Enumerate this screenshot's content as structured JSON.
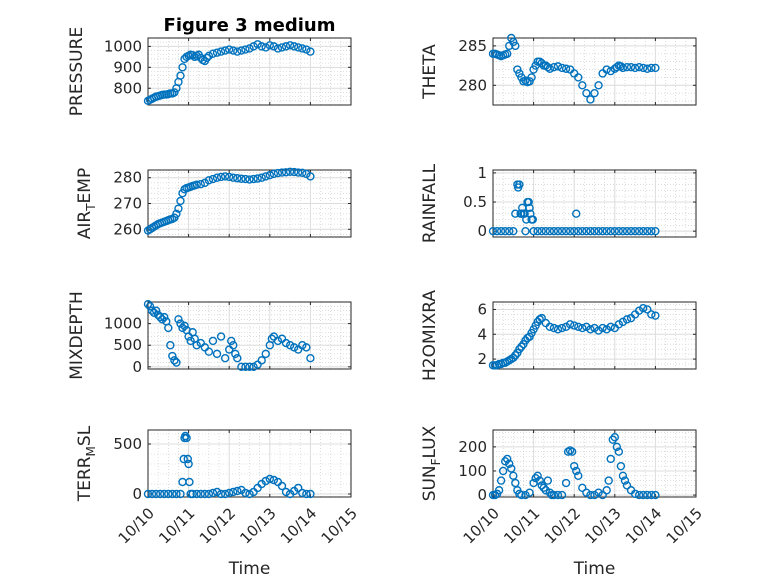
{
  "colors": {
    "marker": "#0072BD",
    "axis": "#262626",
    "grid": "#dcdcdc"
  },
  "chart_data": [
    {
      "type": "scatter",
      "id": "pressure",
      "title": "Figure 3 medium",
      "ylabel": "PRESSURE",
      "ylabel_sub": "",
      "ylabel_after": "",
      "xlabel": "",
      "ylim": [
        720,
        1040
      ],
      "yticks": [
        800,
        900,
        1000
      ],
      "ytick_labels": [
        "800",
        "900",
        "1000"
      ],
      "xlim": [
        0,
        5
      ],
      "xticks": [
        0,
        1,
        2,
        3,
        4,
        5
      ],
      "x": [
        0.0,
        0.05,
        0.1,
        0.15,
        0.2,
        0.25,
        0.3,
        0.35,
        0.4,
        0.45,
        0.5,
        0.55,
        0.6,
        0.65,
        0.7,
        0.75,
        0.8,
        0.85,
        0.9,
        0.95,
        1.0,
        1.05,
        1.1,
        1.15,
        1.2,
        1.25,
        1.3,
        1.35,
        1.4,
        1.45,
        1.5,
        1.6,
        1.7,
        1.8,
        1.9,
        2.0,
        2.1,
        2.2,
        2.3,
        2.4,
        2.5,
        2.6,
        2.7,
        2.8,
        2.9,
        3.0,
        3.1,
        3.2,
        3.3,
        3.4,
        3.5,
        3.6,
        3.7,
        3.8,
        3.9,
        4.0
      ],
      "y": [
        740,
        745,
        750,
        755,
        760,
        762,
        765,
        768,
        770,
        770,
        772,
        775,
        775,
        780,
        800,
        830,
        860,
        900,
        940,
        950,
        955,
        960,
        958,
        950,
        955,
        960,
        945,
        935,
        930,
        945,
        955,
        965,
        970,
        975,
        980,
        985,
        980,
        975,
        980,
        985,
        990,
        1000,
        1010,
        1000,
        995,
        1005,
        1000,
        990,
        995,
        1000,
        1005,
        1000,
        995,
        990,
        985,
        975
      ]
    },
    {
      "type": "scatter",
      "id": "theta",
      "title": "",
      "ylabel": "THETA",
      "ylabel_sub": "",
      "ylabel_after": "",
      "xlabel": "",
      "ylim": [
        277.5,
        286
      ],
      "yticks": [
        280,
        285
      ],
      "ytick_labels": [
        "280",
        "285"
      ],
      "xlim": [
        0,
        5
      ],
      "xticks": [
        0,
        1,
        2,
        3,
        4,
        5
      ],
      "x": [
        0.0,
        0.05,
        0.1,
        0.15,
        0.2,
        0.25,
        0.3,
        0.35,
        0.4,
        0.45,
        0.5,
        0.55,
        0.6,
        0.65,
        0.7,
        0.75,
        0.8,
        0.85,
        0.9,
        0.95,
        1.0,
        1.05,
        1.1,
        1.15,
        1.2,
        1.25,
        1.3,
        1.35,
        1.4,
        1.5,
        1.6,
        1.7,
        1.8,
        1.9,
        2.0,
        2.1,
        2.2,
        2.3,
        2.4,
        2.5,
        2.6,
        2.7,
        2.8,
        2.9,
        3.0,
        3.05,
        3.1,
        3.15,
        3.2,
        3.3,
        3.4,
        3.5,
        3.6,
        3.7,
        3.8,
        3.9,
        4.0
      ],
      "y": [
        284,
        284,
        283.9,
        283.8,
        283.7,
        283.8,
        283.9,
        284,
        285,
        286,
        285.5,
        285,
        282,
        281.5,
        281,
        280.5,
        280.6,
        280.4,
        280.5,
        281,
        282,
        282.5,
        283,
        283,
        282.8,
        282.5,
        282.5,
        282.3,
        282.1,
        282.3,
        282.4,
        282.2,
        282.1,
        282,
        281.5,
        281,
        280,
        279,
        278.2,
        279,
        280,
        281.5,
        282,
        281.8,
        282.1,
        282.3,
        282.5,
        282.4,
        282.2,
        282.3,
        282.3,
        282.2,
        282.3,
        282.2,
        282.1,
        282.2,
        282.2
      ]
    },
    {
      "type": "scatter",
      "id": "air_temp",
      "title": "",
      "ylabel": "AIR",
      "ylabel_sub": "T",
      "ylabel_after": "EMP",
      "xlabel": "",
      "ylim": [
        257,
        283
      ],
      "yticks": [
        260,
        270,
        280
      ],
      "ytick_labels": [
        "260",
        "270",
        "280"
      ],
      "xlim": [
        0,
        5
      ],
      "xticks": [
        0,
        1,
        2,
        3,
        4,
        5
      ],
      "x": [
        0.0,
        0.05,
        0.1,
        0.15,
        0.2,
        0.25,
        0.3,
        0.35,
        0.4,
        0.45,
        0.5,
        0.55,
        0.6,
        0.65,
        0.7,
        0.75,
        0.8,
        0.85,
        0.9,
        0.95,
        1.0,
        1.05,
        1.1,
        1.15,
        1.2,
        1.3,
        1.4,
        1.5,
        1.6,
        1.7,
        1.8,
        1.9,
        2.0,
        2.1,
        2.2,
        2.3,
        2.4,
        2.5,
        2.6,
        2.7,
        2.8,
        2.9,
        3.0,
        3.1,
        3.2,
        3.3,
        3.4,
        3.5,
        3.6,
        3.7,
        3.8,
        3.9,
        4.0
      ],
      "y": [
        259.5,
        260,
        260.5,
        261,
        261.5,
        262,
        262.3,
        262.6,
        262.9,
        263.2,
        263.5,
        263.8,
        264,
        264.5,
        266,
        268,
        271,
        274,
        275.5,
        276,
        276.2,
        276.5,
        276.8,
        277,
        277.3,
        277.5,
        278,
        279,
        279.5,
        280,
        280.3,
        280.5,
        280.3,
        280,
        279.8,
        279.6,
        279.5,
        279.3,
        279.5,
        279.7,
        280,
        280.5,
        281,
        281.5,
        281.8,
        282,
        282.1,
        282.3,
        282.2,
        282,
        281.9,
        281.5,
        280.5
      ]
    },
    {
      "type": "scatter",
      "id": "rainfall",
      "title": "",
      "ylabel": "RAINFALL",
      "ylabel_sub": "",
      "ylabel_after": "",
      "xlabel": "",
      "ylim": [
        -0.1,
        1.05
      ],
      "yticks": [
        0,
        0.5,
        1
      ],
      "ytick_labels": [
        "0",
        "0.5",
        "1"
      ],
      "xlim": [
        0,
        5
      ],
      "xticks": [
        0,
        1,
        2,
        3,
        4,
        5
      ],
      "x": [
        0.0,
        0.1,
        0.2,
        0.3,
        0.4,
        0.5,
        0.55,
        0.6,
        0.62,
        0.65,
        0.68,
        0.7,
        0.72,
        0.75,
        0.78,
        0.8,
        0.82,
        0.85,
        0.88,
        0.9,
        0.92,
        0.95,
        0.98,
        1.0,
        1.1,
        1.2,
        1.3,
        1.4,
        1.5,
        1.6,
        1.7,
        1.8,
        1.9,
        2.0,
        2.05,
        2.1,
        2.2,
        2.3,
        2.4,
        2.5,
        2.6,
        2.7,
        2.8,
        2.9,
        3.0,
        3.1,
        3.2,
        3.3,
        3.4,
        3.5,
        3.6,
        3.7,
        3.8,
        3.9,
        4.0
      ],
      "y": [
        0,
        0,
        0,
        0,
        0,
        0,
        0.3,
        0.8,
        0.75,
        0.8,
        0.3,
        0.3,
        0.4,
        0.3,
        0.3,
        0,
        0.2,
        0.5,
        0.5,
        0.4,
        0.3,
        0.2,
        0.2,
        0,
        0,
        0,
        0,
        0,
        0,
        0,
        0,
        0,
        0,
        0,
        0.3,
        0,
        0,
        0,
        0,
        0,
        0,
        0,
        0,
        0,
        0,
        0,
        0,
        0,
        0,
        0,
        0,
        0,
        0,
        0,
        0
      ]
    },
    {
      "type": "scatter",
      "id": "mixdepth",
      "title": "",
      "ylabel": "MIXDEPTH",
      "ylabel_sub": "",
      "ylabel_after": "",
      "xlabel": "",
      "ylim": [
        -50,
        1500
      ],
      "yticks": [
        0,
        500,
        1000
      ],
      "ytick_labels": [
        "0",
        "500",
        "1000"
      ],
      "xlim": [
        0,
        5
      ],
      "xticks": [
        0,
        1,
        2,
        3,
        4,
        5
      ],
      "x": [
        0.0,
        0.05,
        0.1,
        0.15,
        0.2,
        0.25,
        0.3,
        0.35,
        0.4,
        0.45,
        0.5,
        0.55,
        0.6,
        0.65,
        0.7,
        0.75,
        0.8,
        0.85,
        0.9,
        0.95,
        1.0,
        1.05,
        1.1,
        1.15,
        1.2,
        1.3,
        1.4,
        1.5,
        1.6,
        1.7,
        1.8,
        1.9,
        2.0,
        2.05,
        2.1,
        2.15,
        2.2,
        2.3,
        2.4,
        2.5,
        2.6,
        2.7,
        2.8,
        2.9,
        3.0,
        3.05,
        3.1,
        3.2,
        3.3,
        3.4,
        3.5,
        3.6,
        3.7,
        3.8,
        3.9,
        4.0
      ],
      "y": [
        1450,
        1400,
        1300,
        1250,
        1300,
        1200,
        1150,
        1100,
        1150,
        1050,
        900,
        500,
        250,
        150,
        100,
        1100,
        1000,
        900,
        950,
        850,
        700,
        600,
        800,
        650,
        500,
        550,
        450,
        350,
        600,
        300,
        700,
        200,
        400,
        600,
        500,
        300,
        200,
        0,
        0,
        0,
        0,
        50,
        150,
        300,
        500,
        650,
        700,
        600,
        650,
        550,
        500,
        450,
        400,
        500,
        450,
        200
      ]
    },
    {
      "type": "scatter",
      "id": "h2omixra",
      "title": "",
      "ylabel": "H2OMIXRA",
      "ylabel_sub": "",
      "ylabel_after": "",
      "xlabel": "",
      "ylim": [
        1.2,
        6.6
      ],
      "yticks": [
        2,
        4,
        6
      ],
      "ytick_labels": [
        "2",
        "4",
        "6"
      ],
      "xlim": [
        0,
        5
      ],
      "xticks": [
        0,
        1,
        2,
        3,
        4,
        5
      ],
      "x": [
        0.0,
        0.05,
        0.1,
        0.15,
        0.2,
        0.25,
        0.3,
        0.35,
        0.4,
        0.45,
        0.5,
        0.55,
        0.6,
        0.65,
        0.7,
        0.75,
        0.8,
        0.85,
        0.9,
        0.95,
        1.0,
        1.05,
        1.1,
        1.15,
        1.2,
        1.3,
        1.4,
        1.5,
        1.6,
        1.7,
        1.8,
        1.9,
        2.0,
        2.1,
        2.2,
        2.3,
        2.4,
        2.5,
        2.6,
        2.7,
        2.8,
        2.9,
        3.0,
        3.1,
        3.2,
        3.3,
        3.4,
        3.5,
        3.6,
        3.7,
        3.8,
        3.9,
        4.0
      ],
      "y": [
        1.5,
        1.5,
        1.5,
        1.6,
        1.6,
        1.7,
        1.7,
        1.8,
        1.9,
        2,
        2.1,
        2.3,
        2.5,
        2.8,
        3,
        3.2,
        3.5,
        3.7,
        3.8,
        4.1,
        4.4,
        4.7,
        5,
        5.2,
        5.3,
        4.9,
        4.6,
        4.5,
        4.4,
        4.5,
        4.6,
        4.8,
        4.7,
        4.6,
        4.5,
        4.6,
        4.4,
        4.5,
        4.3,
        4.5,
        4.4,
        4.6,
        4.5,
        4.8,
        5.0,
        5.2,
        5.3,
        5.6,
        5.9,
        6.1,
        6.0,
        5.6,
        5.5
      ]
    },
    {
      "type": "scatter",
      "id": "terr_msl",
      "title": "",
      "ylabel": "TERR",
      "ylabel_sub": "M",
      "ylabel_after": "SL",
      "xlabel": "Time",
      "ylim": [
        -30,
        640
      ],
      "yticks": [
        0,
        500
      ],
      "ytick_labels": [
        "0",
        "500"
      ],
      "xlim": [
        0,
        5
      ],
      "xticks": [
        0,
        1,
        2,
        3,
        4,
        5
      ],
      "xtick_labels": [
        "10/10",
        "10/11",
        "10/12",
        "10/13",
        "10/14",
        "10/15"
      ],
      "x": [
        0.0,
        0.1,
        0.2,
        0.3,
        0.4,
        0.5,
        0.6,
        0.7,
        0.8,
        0.85,
        0.88,
        0.9,
        0.92,
        0.95,
        0.98,
        1.0,
        1.02,
        1.05,
        1.1,
        1.2,
        1.3,
        1.4,
        1.5,
        1.6,
        1.7,
        1.8,
        1.9,
        2.0,
        2.1,
        2.2,
        2.3,
        2.4,
        2.5,
        2.6,
        2.7,
        2.8,
        2.9,
        3.0,
        3.1,
        3.2,
        3.3,
        3.4,
        3.5,
        3.6,
        3.7,
        3.8,
        3.9,
        4.0
      ],
      "y": [
        0,
        0,
        0,
        0,
        0,
        0,
        0,
        0,
        0,
        120,
        350,
        560,
        580,
        560,
        350,
        300,
        120,
        0,
        0,
        0,
        0,
        0,
        0,
        10,
        20,
        0,
        0,
        10,
        20,
        30,
        40,
        10,
        0,
        20,
        60,
        100,
        130,
        150,
        140,
        120,
        80,
        20,
        0,
        30,
        60,
        10,
        0,
        0
      ]
    },
    {
      "type": "scatter",
      "id": "sun_flux",
      "title": "",
      "ylabel": "SUN",
      "ylabel_sub": "F",
      "ylabel_after": "LUX",
      "xlabel": "Time",
      "ylim": [
        -8,
        270
      ],
      "yticks": [
        0,
        100,
        200
      ],
      "ytick_labels": [
        "0",
        "100",
        "200"
      ],
      "xlim": [
        0,
        5
      ],
      "xticks": [
        0,
        1,
        2,
        3,
        4,
        5
      ],
      "xtick_labels": [
        "10/10",
        "10/11",
        "10/12",
        "10/13",
        "10/14",
        "10/15"
      ],
      "x": [
        0.0,
        0.05,
        0.1,
        0.15,
        0.2,
        0.25,
        0.3,
        0.35,
        0.4,
        0.45,
        0.5,
        0.55,
        0.6,
        0.65,
        0.7,
        0.8,
        0.9,
        1.0,
        1.05,
        1.1,
        1.15,
        1.2,
        1.25,
        1.3,
        1.35,
        1.4,
        1.45,
        1.5,
        1.6,
        1.7,
        1.8,
        1.85,
        1.9,
        1.95,
        2.0,
        2.05,
        2.1,
        2.2,
        2.3,
        2.4,
        2.5,
        2.6,
        2.7,
        2.8,
        2.85,
        2.9,
        2.95,
        3.0,
        3.05,
        3.1,
        3.15,
        3.2,
        3.25,
        3.3,
        3.4,
        3.5,
        3.6,
        3.7,
        3.8,
        3.9,
        4.0
      ],
      "y": [
        0,
        0,
        5,
        20,
        60,
        100,
        140,
        150,
        130,
        110,
        80,
        50,
        20,
        5,
        0,
        0,
        10,
        50,
        70,
        80,
        60,
        40,
        30,
        20,
        60,
        10,
        0,
        0,
        0,
        0,
        50,
        180,
        185,
        180,
        120,
        100,
        80,
        30,
        10,
        0,
        0,
        10,
        0,
        20,
        60,
        150,
        230,
        240,
        200,
        180,
        120,
        80,
        60,
        40,
        20,
        5,
        0,
        0,
        0,
        0,
        0
      ]
    }
  ]
}
